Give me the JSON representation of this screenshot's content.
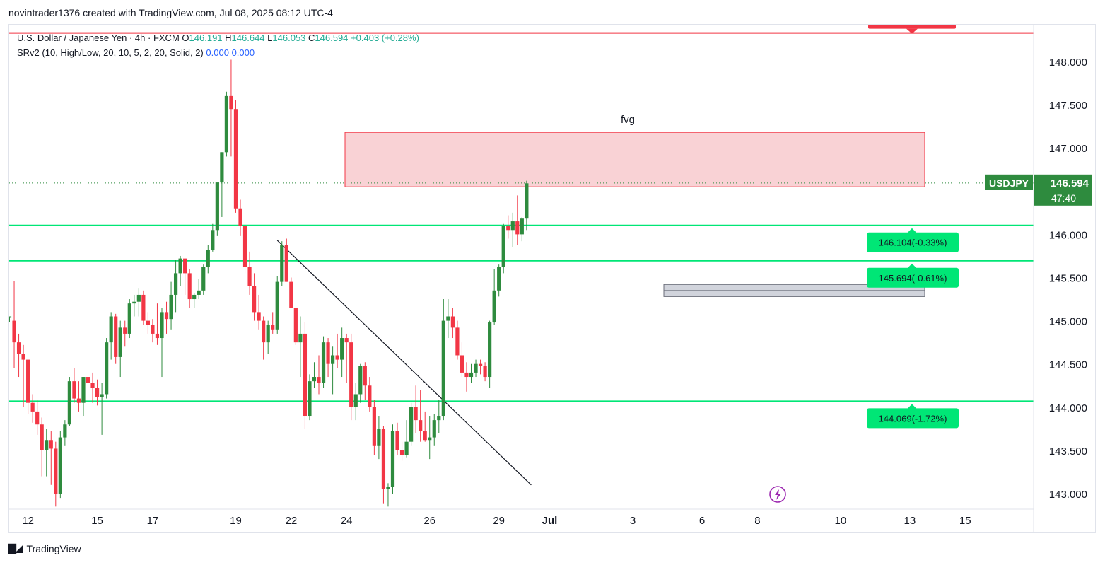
{
  "header": {
    "attribution": "novintrader1376 created with TradingView.com, Jul 08, 2025 08:12 UTC-4"
  },
  "legend": {
    "symbol": "U.S. Dollar / Japanese Yen · 4h · FXCM",
    "open_label": "O",
    "open": "146.191",
    "high_label": "H",
    "high": "146.644",
    "low_label": "L",
    "low": "146.053",
    "close_label": "C",
    "close": "146.594",
    "change": "+0.403 (+0.28%)",
    "indicator": "SRv2 (10, High/Low, 20, 10, 5, 2, 20, Solid, 2)",
    "indicator_v1": "0.000",
    "indicator_v2": "0.000"
  },
  "footer": {
    "brand": "TradingView"
  },
  "chart_data": {
    "type": "candlestick",
    "symbol": "USDJPY",
    "timeframe": "4h",
    "ylim": [
      142.75,
      148.3
    ],
    "y_ticks": [
      "148.000",
      "147.500",
      "147.000",
      "146.500",
      "146.000",
      "145.500",
      "145.000",
      "144.500",
      "144.000",
      "143.500",
      "143.000"
    ],
    "x_ticks": [
      {
        "label": "12",
        "index": 4
      },
      {
        "label": "15",
        "index": 19
      },
      {
        "label": "17",
        "index": 31
      },
      {
        "label": "19",
        "index": 49
      },
      {
        "label": "22",
        "index": 61
      },
      {
        "label": "24",
        "index": 73
      },
      {
        "label": "26",
        "index": 91
      },
      {
        "label": "29",
        "index": 106
      },
      {
        "label": "Jul",
        "index": 117
      },
      {
        "label": "3",
        "index": 135
      },
      {
        "label": "6",
        "index": 150
      },
      {
        "label": "8",
        "index": 162
      },
      {
        "label": "10",
        "index": 180
      },
      {
        "label": "13",
        "index": 195
      },
      {
        "label": "15",
        "index": 207
      }
    ],
    "candles": [
      [
        145.05,
        145.05,
        144.98,
        145.05
      ],
      [
        145.0,
        145.46,
        144.45,
        144.75
      ],
      [
        144.75,
        144.85,
        144.35,
        144.62
      ],
      [
        144.62,
        144.72,
        144.0,
        144.55
      ],
      [
        144.55,
        144.55,
        143.92,
        144.05
      ],
      [
        144.05,
        144.15,
        143.82,
        143.95
      ],
      [
        143.95,
        144.08,
        143.68,
        143.8
      ],
      [
        143.8,
        143.88,
        143.2,
        143.5
      ],
      [
        143.5,
        143.75,
        143.2,
        143.62
      ],
      [
        143.62,
        143.72,
        143.1,
        143.52
      ],
      [
        143.52,
        143.6,
        142.85,
        143.0
      ],
      [
        143.0,
        143.72,
        142.95,
        143.65
      ],
      [
        143.65,
        143.85,
        143.55,
        143.8
      ],
      [
        143.8,
        144.35,
        143.78,
        144.3
      ],
      [
        144.3,
        144.45,
        144.05,
        144.1
      ],
      [
        144.1,
        144.3,
        143.95,
        144.05
      ],
      [
        144.05,
        144.35,
        143.9,
        144.35
      ],
      [
        144.35,
        144.4,
        144.22,
        144.28
      ],
      [
        144.28,
        144.4,
        144.05,
        144.22
      ],
      [
        144.22,
        144.32,
        144.02,
        144.12
      ],
      [
        144.12,
        144.28,
        143.68,
        144.15
      ],
      [
        144.15,
        144.8,
        144.1,
        144.75
      ],
      [
        144.75,
        145.1,
        144.55,
        145.05
      ],
      [
        145.05,
        145.08,
        144.5,
        144.58
      ],
      [
        144.58,
        145.0,
        144.35,
        144.92
      ],
      [
        144.92,
        145.0,
        144.7,
        144.85
      ],
      [
        144.85,
        145.25,
        144.8,
        145.2
      ],
      [
        145.2,
        145.3,
        145.05,
        145.22
      ],
      [
        145.22,
        145.38,
        145.05,
        145.3
      ],
      [
        145.3,
        145.35,
        144.95,
        145.0
      ],
      [
        145.0,
        145.1,
        144.85,
        144.95
      ],
      [
        144.95,
        145.02,
        144.75,
        144.85
      ],
      [
        144.85,
        145.2,
        144.72,
        144.8
      ],
      [
        144.8,
        145.15,
        144.35,
        145.1
      ],
      [
        145.1,
        145.22,
        144.85,
        145.02
      ],
      [
        145.02,
        145.45,
        144.9,
        145.3
      ],
      [
        145.3,
        145.7,
        145.1,
        145.55
      ],
      [
        145.55,
        145.75,
        145.4,
        145.72
      ],
      [
        145.72,
        145.72,
        145.3,
        145.55
      ],
      [
        145.55,
        145.6,
        145.15,
        145.25
      ],
      [
        145.25,
        145.32,
        145.15,
        145.3
      ],
      [
        145.3,
        145.48,
        145.25,
        145.35
      ],
      [
        145.35,
        145.65,
        145.3,
        145.62
      ],
      [
        145.62,
        145.88,
        145.55,
        145.82
      ],
      [
        145.82,
        146.12,
        145.8,
        146.05
      ],
      [
        146.05,
        146.55,
        145.98,
        146.6
      ],
      [
        146.6,
        146.95,
        146.2,
        146.95
      ],
      [
        146.95,
        147.65,
        146.9,
        147.6
      ],
      [
        147.6,
        148.02,
        146.9,
        147.45
      ],
      [
        147.45,
        147.55,
        146.25,
        146.3
      ],
      [
        146.3,
        146.4,
        145.98,
        146.1
      ],
      [
        146.1,
        146.1,
        145.55,
        145.62
      ],
      [
        145.62,
        145.8,
        145.3,
        145.4
      ],
      [
        145.4,
        145.55,
        145.0,
        145.1
      ],
      [
        145.1,
        145.3,
        144.9,
        145.0
      ],
      [
        145.0,
        145.05,
        144.55,
        144.75
      ],
      [
        144.75,
        145.0,
        144.62,
        144.95
      ],
      [
        144.95,
        145.1,
        144.85,
        144.9
      ],
      [
        144.9,
        145.52,
        144.85,
        145.45
      ],
      [
        145.45,
        145.92,
        145.4,
        145.88
      ],
      [
        145.88,
        145.95,
        145.45,
        145.45
      ],
      [
        145.45,
        145.5,
        145.15,
        145.15
      ],
      [
        145.15,
        145.15,
        144.72,
        144.75
      ],
      [
        144.75,
        145.05,
        144.35,
        144.85
      ],
      [
        144.85,
        144.98,
        143.75,
        143.9
      ],
      [
        143.9,
        144.38,
        143.85,
        144.3
      ],
      [
        144.3,
        144.52,
        144.22,
        144.35
      ],
      [
        144.35,
        144.6,
        144.15,
        144.28
      ],
      [
        144.28,
        144.82,
        144.22,
        144.75
      ],
      [
        144.75,
        144.8,
        144.35,
        144.5
      ],
      [
        144.5,
        144.7,
        144.15,
        144.6
      ],
      [
        144.6,
        144.85,
        144.45,
        144.55
      ],
      [
        144.55,
        144.92,
        144.35,
        144.8
      ],
      [
        144.8,
        144.85,
        144.28,
        144.75
      ],
      [
        144.75,
        144.85,
        143.85,
        144.0
      ],
      [
        144.0,
        144.28,
        143.85,
        144.15
      ],
      [
        144.15,
        144.5,
        144.05,
        144.48
      ],
      [
        144.48,
        144.52,
        144.08,
        144.25
      ],
      [
        144.25,
        144.35,
        143.95,
        144.0
      ],
      [
        144.0,
        144.08,
        143.45,
        143.55
      ],
      [
        143.55,
        143.9,
        143.4,
        143.75
      ],
      [
        143.75,
        143.78,
        142.88,
        143.05
      ],
      [
        143.05,
        143.12,
        142.85,
        143.08
      ],
      [
        143.08,
        143.8,
        143.0,
        143.72
      ],
      [
        143.72,
        143.82,
        143.45,
        143.5
      ],
      [
        143.5,
        143.6,
        143.38,
        143.45
      ],
      [
        143.45,
        143.85,
        143.42,
        143.6
      ],
      [
        143.6,
        144.05,
        143.55,
        144.0
      ],
      [
        144.0,
        144.25,
        143.7,
        143.85
      ],
      [
        143.85,
        144.2,
        143.6,
        143.72
      ],
      [
        143.72,
        143.95,
        143.6,
        143.62
      ],
      [
        143.62,
        143.9,
        143.4,
        143.65
      ],
      [
        143.65,
        143.92,
        143.55,
        143.85
      ],
      [
        143.85,
        144.08,
        143.7,
        143.9
      ],
      [
        143.9,
        145.25,
        143.85,
        145.0
      ],
      [
        145.0,
        145.25,
        144.8,
        145.05
      ],
      [
        145.05,
        145.15,
        144.8,
        144.92
      ],
      [
        144.92,
        145.0,
        144.55,
        144.6
      ],
      [
        144.6,
        144.75,
        144.35,
        144.4
      ],
      [
        144.4,
        144.52,
        144.18,
        144.35
      ],
      [
        144.35,
        144.5,
        144.28,
        144.4
      ],
      [
        144.4,
        144.55,
        144.35,
        144.5
      ],
      [
        144.5,
        144.55,
        144.38,
        144.48
      ],
      [
        144.48,
        144.52,
        144.3,
        144.35
      ],
      [
        144.35,
        145.0,
        144.22,
        144.98
      ],
      [
        144.98,
        145.6,
        144.95,
        145.35
      ],
      [
        145.35,
        145.65,
        145.28,
        145.62
      ],
      [
        145.62,
        146.12,
        145.55,
        146.1
      ],
      [
        146.1,
        146.22,
        145.95,
        146.05
      ],
      [
        146.05,
        146.25,
        145.85,
        146.15
      ],
      [
        146.15,
        146.45,
        145.88,
        146.0
      ],
      [
        146.0,
        146.2,
        145.92,
        146.19
      ],
      [
        146.19,
        146.62,
        146.05,
        146.59
      ]
    ],
    "zones": [
      {
        "name": "fvg",
        "from": 146.55,
        "to": 147.18
      },
      {
        "name": "",
        "from": 145.28,
        "to": 145.42
      }
    ],
    "levels": [
      {
        "label": "146.104(-0.33%)",
        "price": 146.104
      },
      {
        "label": "145.694(-0.61%)",
        "price": 145.694
      },
      {
        "label": "144.069(-1.72%)",
        "price": 144.069
      }
    ],
    "resistance_level": 148.33,
    "trendline": {
      "from": {
        "index": 58,
        "price": 145.93
      },
      "to": {
        "index": 113,
        "price": 143.1
      }
    },
    "last_price": {
      "symbol": "USDJPY",
      "price": "146.594",
      "countdown": "47:40"
    },
    "colors": {
      "up": "#2e8b3e",
      "down": "#f23645",
      "level": "#00e676",
      "resistance": "#f23645",
      "zone": "#f9d2d5",
      "badge": "#2e8b3e"
    }
  }
}
